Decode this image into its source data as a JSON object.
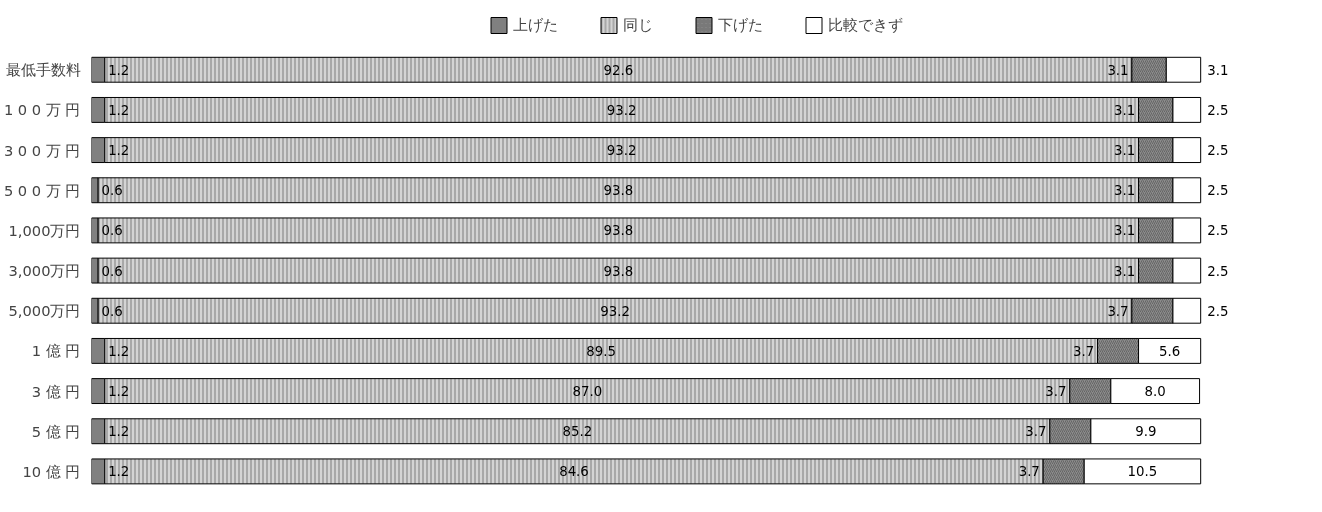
{
  "chart_data": {
    "type": "bar",
    "orientation": "horizontal",
    "stacked": true,
    "legend": "top",
    "grid": false,
    "categories": [
      "最低手数料",
      "1 0 0 万 円",
      "3 0 0 万 円",
      "5 0 0 万 円",
      "1,000万円",
      "3,000万円",
      "5,000万円",
      "1 億 円",
      "3 億 円",
      "5 億 円",
      "10 億 円"
    ],
    "series": [
      {
        "name": "上げた",
        "color": "#808080",
        "values": [
          1.2,
          1.2,
          1.2,
          0.6,
          0.6,
          0.6,
          0.6,
          1.2,
          1.2,
          1.2,
          1.2
        ],
        "value_labels": [
          "1.2",
          "1.2",
          "1.2",
          "0.6",
          "0.6",
          "0.6",
          "0.6",
          "1.2",
          "1.2",
          "1.2",
          "1.2"
        ]
      },
      {
        "name": "同じ",
        "color": "#d4d4d4",
        "values": [
          92.6,
          93.2,
          93.2,
          93.8,
          93.8,
          93.8,
          93.2,
          89.5,
          87.0,
          85.2,
          84.6
        ],
        "value_labels": [
          "92.6",
          "93.2",
          "93.2",
          "93.8",
          "93.8",
          "93.8",
          "93.2",
          "89.5",
          "87.0",
          "85.2",
          "84.6"
        ]
      },
      {
        "name": "下げた",
        "color": "#8c8c8c",
        "values": [
          3.1,
          3.1,
          3.1,
          3.1,
          3.1,
          3.1,
          3.7,
          3.7,
          3.7,
          3.7,
          3.7
        ],
        "value_labels": [
          "3.1",
          "3.1",
          "3.1",
          "3.1",
          "3.1",
          "3.1",
          "3.7",
          "3.7",
          "3.7",
          "3.7",
          "3.7"
        ]
      },
      {
        "name": "比較できず",
        "color": "#ffffff",
        "values": [
          3.1,
          2.5,
          2.5,
          2.5,
          2.5,
          2.5,
          2.5,
          5.6,
          8.0,
          9.9,
          10.5
        ],
        "value_labels": [
          "3.1",
          "2.5",
          "2.5",
          "2.5",
          "2.5",
          "2.5",
          "2.5",
          "5.6",
          "8.0",
          "9.9",
          "10.5"
        ]
      }
    ]
  }
}
